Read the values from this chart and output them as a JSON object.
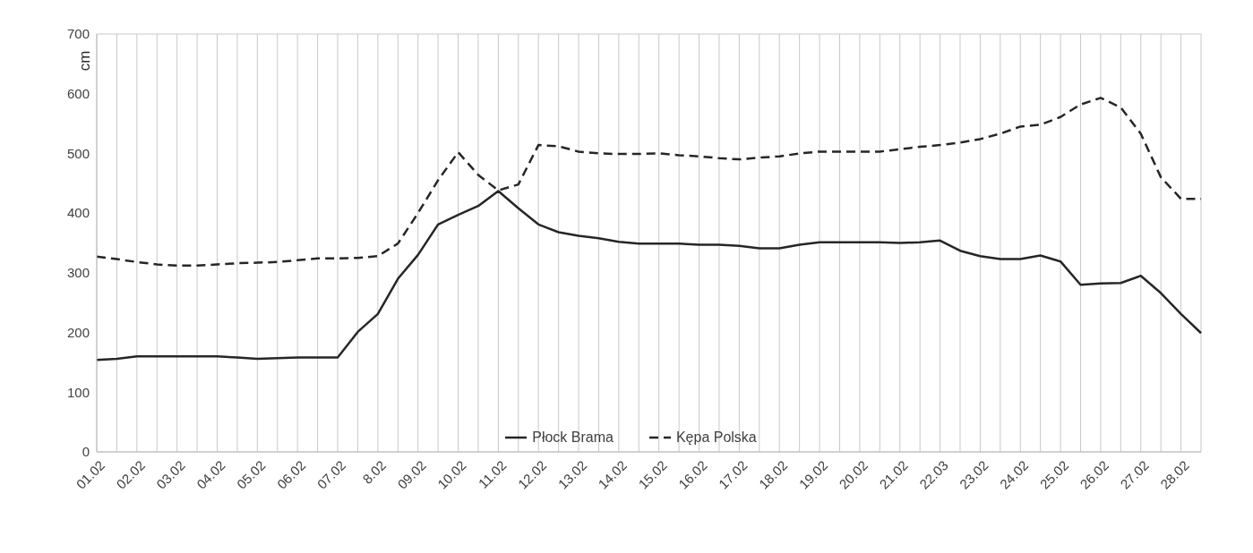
{
  "chart_data": {
    "type": "line",
    "ylabel": "cm",
    "categories": [
      "01.02",
      null,
      "02.02",
      null,
      "03.02",
      null,
      "04.02",
      null,
      "05.02",
      null,
      "06.02",
      null,
      "07.02",
      null,
      "8.02",
      null,
      "09.02",
      null,
      "10.02",
      null,
      "11.02",
      null,
      "12.02",
      null,
      "13.02",
      null,
      "14.02",
      null,
      "15.02",
      null,
      "16.02",
      null,
      "17.02",
      null,
      "18.02",
      null,
      "19.02",
      null,
      "20.02",
      null,
      "21.02",
      null,
      "22.03",
      null,
      "23.02",
      null,
      "24.02",
      null,
      "25.02",
      null,
      "26.02",
      null,
      "27.02",
      null,
      "28.02",
      null
    ],
    "series": [
      {
        "name": "Płock Brama",
        "color": "#262626",
        "line_style": "solid",
        "values": [
          154,
          156,
          160,
          160,
          160,
          160,
          160,
          158,
          156,
          157,
          158,
          158,
          158,
          201,
          231,
          290,
          330,
          381,
          397,
          412,
          437,
          408,
          381,
          368,
          362,
          358,
          352,
          349,
          349,
          349,
          347,
          347,
          345,
          341,
          341,
          347,
          351,
          351,
          351,
          351,
          350,
          351,
          354,
          337,
          328,
          323,
          323,
          329,
          319,
          280,
          282,
          283,
          295,
          266,
          231,
          199
        ]
      },
      {
        "name": "Kępa Polska",
        "color": "#262626",
        "line_style": "dashed",
        "values": [
          327,
          323,
          318,
          314,
          312,
          312,
          314,
          316,
          317,
          318,
          321,
          324,
          324,
          325,
          328,
          349,
          400,
          455,
          502,
          464,
          438,
          448,
          514,
          512,
          503,
          500,
          499,
          499,
          500,
          497,
          495,
          492,
          490,
          493,
          495,
          500,
          503,
          503,
          503,
          503,
          507,
          511,
          514,
          518,
          524,
          533,
          545,
          548,
          561,
          582,
          593,
          577,
          533,
          460,
          424,
          424
        ]
      }
    ],
    "ylim": [
      0,
      700
    ],
    "yticks": [
      0,
      100,
      200,
      300,
      400,
      500,
      600,
      700
    ],
    "grid": true,
    "legend": "bottom",
    "marker": "none"
  }
}
